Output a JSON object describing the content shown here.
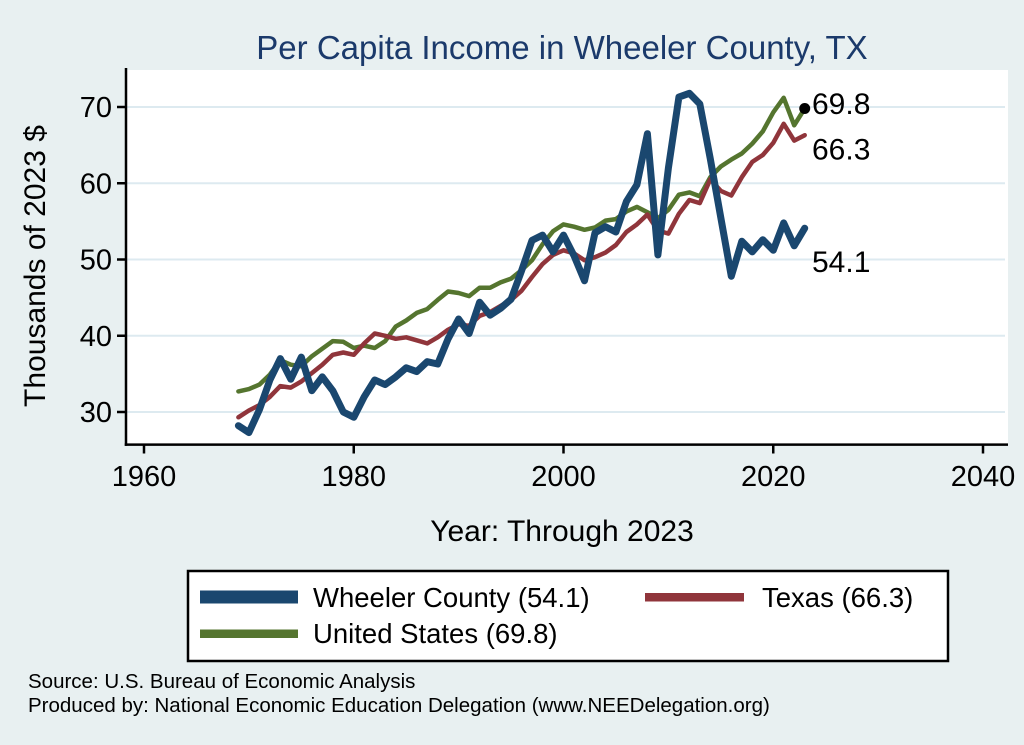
{
  "chart": {
    "title": "Per Capita Income in Wheeler County, TX",
    "x_axis_label": "Year: Through 2023",
    "y_axis_label": "Thousands of 2023 $",
    "source_line1": "Source: U.S. Bureau of Economic Analysis",
    "source_line2": "Produced by: National Economic Education Delegation (www.NEEDelegation.org)",
    "colors": {
      "title": "#1b3a6b",
      "background": "#e8f0f1",
      "plot_background": "#ffffff",
      "gridline": "#ddeaf0",
      "axis": "#000000",
      "wheeler": "#1a476f",
      "texas": "#90353b",
      "united_states": "#55752f"
    }
  },
  "chart_data": {
    "type": "line",
    "title": "Per Capita Income in Wheeler County, TX",
    "xlabel": "Year: Through 2023",
    "ylabel": "Thousands of 2023 $",
    "xlim": [
      1960,
      2040
    ],
    "ylim": [
      26,
      74.5
    ],
    "x_ticks": [
      1960,
      1980,
      2000,
      2020,
      2040
    ],
    "y_ticks": [
      30,
      40,
      50,
      60,
      70
    ],
    "grid": true,
    "legend_position": "bottom",
    "x": [
      1969,
      1970,
      1971,
      1972,
      1973,
      1974,
      1975,
      1976,
      1977,
      1978,
      1979,
      1980,
      1981,
      1982,
      1983,
      1984,
      1985,
      1986,
      1987,
      1988,
      1989,
      1990,
      1991,
      1992,
      1993,
      1994,
      1995,
      1996,
      1997,
      1998,
      1999,
      2000,
      2001,
      2002,
      2003,
      2004,
      2005,
      2006,
      2007,
      2008,
      2009,
      2010,
      2011,
      2012,
      2013,
      2014,
      2015,
      2016,
      2017,
      2018,
      2019,
      2020,
      2021,
      2022,
      2023
    ],
    "series": [
      {
        "name": "Wheeler County",
        "legend_label": "Wheeler County (54.1)",
        "color": "#1a476f",
        "line_width": 7,
        "end_label": "54.1",
        "end_label_dy": 34,
        "end_marker": false,
        "values": [
          28.2,
          27.3,
          30.3,
          34.2,
          37.0,
          34.3,
          37.2,
          32.8,
          34.6,
          32.8,
          30.0,
          29.3,
          32.0,
          34.2,
          33.6,
          34.6,
          35.8,
          35.3,
          36.6,
          36.3,
          39.6,
          42.2,
          40.3,
          44.4,
          42.7,
          43.6,
          44.8,
          48.5,
          52.5,
          53.2,
          51.0,
          53.2,
          50.5,
          47.2,
          53.5,
          54.3,
          53.6,
          57.6,
          59.8,
          66.5,
          50.6,
          62.0,
          71.3,
          71.8,
          70.4,
          63.2,
          55.5,
          47.8,
          52.4,
          51.0,
          52.6,
          51.2,
          54.8,
          51.8,
          54.1
        ]
      },
      {
        "name": "Texas",
        "legend_label": "Texas (66.3)",
        "color": "#90353b",
        "line_width": 4.5,
        "end_label": "66.3",
        "end_label_dy": 14.5,
        "end_marker": false,
        "values": [
          29.3,
          30.2,
          30.9,
          32.0,
          33.4,
          33.2,
          34.0,
          35.1,
          36.2,
          37.5,
          37.8,
          37.5,
          39.0,
          40.3,
          40.0,
          39.6,
          39.8,
          39.4,
          39.0,
          39.8,
          40.8,
          41.5,
          41.3,
          42.6,
          43.1,
          43.9,
          44.7,
          45.9,
          47.7,
          49.4,
          50.6,
          51.2,
          50.8,
          49.9,
          50.3,
          50.9,
          51.9,
          53.6,
          54.6,
          55.9,
          53.8,
          53.4,
          56.0,
          57.8,
          57.4,
          60.5,
          59.0,
          58.4,
          60.8,
          62.8,
          63.7,
          65.3,
          67.8,
          65.6,
          66.3
        ]
      },
      {
        "name": "United States",
        "legend_label": "United States (69.8)",
        "color": "#55752f",
        "line_width": 4.5,
        "end_label": "69.8",
        "end_label_dy": -4.5,
        "end_marker": true,
        "values": [
          32.7,
          33.0,
          33.6,
          34.9,
          36.8,
          36.2,
          36.0,
          37.3,
          38.3,
          39.3,
          39.2,
          38.4,
          38.7,
          38.4,
          39.3,
          41.2,
          42.0,
          43.0,
          43.5,
          44.7,
          45.8,
          45.6,
          45.2,
          46.3,
          46.3,
          47.0,
          47.5,
          48.6,
          49.9,
          52.0,
          53.7,
          54.6,
          54.3,
          53.9,
          54.2,
          55.1,
          55.3,
          56.3,
          56.9,
          56.2,
          55.4,
          56.5,
          58.5,
          58.8,
          58.3,
          60.8,
          62.2,
          63.1,
          63.9,
          65.2,
          66.8,
          69.3,
          71.2,
          67.6,
          69.8
        ]
      }
    ]
  }
}
